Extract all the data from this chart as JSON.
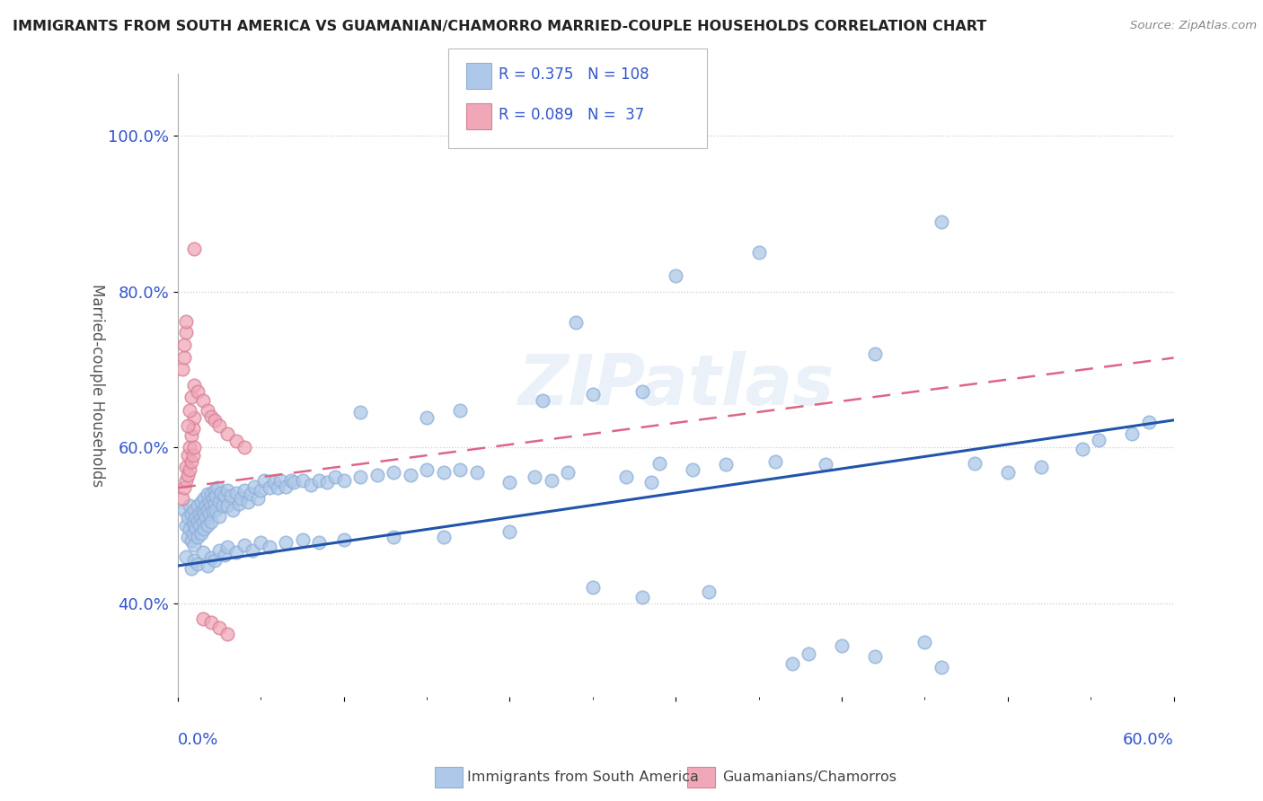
{
  "title": "IMMIGRANTS FROM SOUTH AMERICA VS GUAMANIAN/CHAMORRO MARRIED-COUPLE HOUSEHOLDS CORRELATION CHART",
  "source": "Source: ZipAtlas.com",
  "ylabel": "Married-couple Households",
  "ytick_labels": [
    "40.0%",
    "60.0%",
    "80.0%",
    "100.0%"
  ],
  "ytick_values": [
    0.4,
    0.6,
    0.8,
    1.0
  ],
  "xlim": [
    0.0,
    0.6
  ],
  "ylim": [
    0.28,
    1.08
  ],
  "blue_color": "#adc8e8",
  "blue_edge_color": "#90b0d8",
  "pink_color": "#f0a8b8",
  "pink_edge_color": "#d88098",
  "blue_line_color": "#2255aa",
  "pink_line_color": "#dd6688",
  "legend_text_color": "#3355cc",
  "watermark": "ZIPatlas",
  "blue_trend_x": [
    0.0,
    0.6
  ],
  "blue_trend_y": [
    0.448,
    0.635
  ],
  "pink_trend_x": [
    0.0,
    0.6
  ],
  "pink_trend_y": [
    0.548,
    0.715
  ],
  "background_color": "#ffffff",
  "grid_color": "#cccccc",
  "blue_scatter": [
    [
      0.004,
      0.52
    ],
    [
      0.005,
      0.5
    ],
    [
      0.006,
      0.485
    ],
    [
      0.006,
      0.51
    ],
    [
      0.007,
      0.525
    ],
    [
      0.007,
      0.495
    ],
    [
      0.008,
      0.515
    ],
    [
      0.008,
      0.48
    ],
    [
      0.009,
      0.505
    ],
    [
      0.009,
      0.49
    ],
    [
      0.01,
      0.52
    ],
    [
      0.01,
      0.5
    ],
    [
      0.01,
      0.475
    ],
    [
      0.011,
      0.51
    ],
    [
      0.011,
      0.495
    ],
    [
      0.012,
      0.525
    ],
    [
      0.012,
      0.505
    ],
    [
      0.012,
      0.485
    ],
    [
      0.013,
      0.515
    ],
    [
      0.013,
      0.5
    ],
    [
      0.014,
      0.53
    ],
    [
      0.014,
      0.51
    ],
    [
      0.014,
      0.49
    ],
    [
      0.015,
      0.52
    ],
    [
      0.015,
      0.505
    ],
    [
      0.016,
      0.535
    ],
    [
      0.016,
      0.515
    ],
    [
      0.016,
      0.495
    ],
    [
      0.017,
      0.525
    ],
    [
      0.017,
      0.51
    ],
    [
      0.018,
      0.54
    ],
    [
      0.018,
      0.52
    ],
    [
      0.018,
      0.5
    ],
    [
      0.019,
      0.53
    ],
    [
      0.019,
      0.515
    ],
    [
      0.02,
      0.54
    ],
    [
      0.02,
      0.525
    ],
    [
      0.02,
      0.505
    ],
    [
      0.021,
      0.535
    ],
    [
      0.021,
      0.518
    ],
    [
      0.022,
      0.545
    ],
    [
      0.022,
      0.528
    ],
    [
      0.023,
      0.538
    ],
    [
      0.023,
      0.52
    ],
    [
      0.024,
      0.548
    ],
    [
      0.025,
      0.53
    ],
    [
      0.025,
      0.512
    ],
    [
      0.026,
      0.542
    ],
    [
      0.027,
      0.525
    ],
    [
      0.028,
      0.538
    ],
    [
      0.03,
      0.545
    ],
    [
      0.03,
      0.525
    ],
    [
      0.032,
      0.538
    ],
    [
      0.033,
      0.52
    ],
    [
      0.035,
      0.542
    ],
    [
      0.037,
      0.528
    ],
    [
      0.038,
      0.535
    ],
    [
      0.04,
      0.545
    ],
    [
      0.042,
      0.53
    ],
    [
      0.044,
      0.54
    ],
    [
      0.046,
      0.55
    ],
    [
      0.048,
      0.535
    ],
    [
      0.05,
      0.545
    ],
    [
      0.052,
      0.558
    ],
    [
      0.055,
      0.548
    ],
    [
      0.058,
      0.555
    ],
    [
      0.06,
      0.548
    ],
    [
      0.062,
      0.558
    ],
    [
      0.065,
      0.55
    ],
    [
      0.068,
      0.558
    ],
    [
      0.07,
      0.555
    ],
    [
      0.075,
      0.558
    ],
    [
      0.08,
      0.552
    ],
    [
      0.085,
      0.558
    ],
    [
      0.09,
      0.555
    ],
    [
      0.095,
      0.562
    ],
    [
      0.1,
      0.558
    ],
    [
      0.11,
      0.562
    ],
    [
      0.12,
      0.565
    ],
    [
      0.13,
      0.568
    ],
    [
      0.14,
      0.565
    ],
    [
      0.15,
      0.572
    ],
    [
      0.16,
      0.568
    ],
    [
      0.17,
      0.572
    ],
    [
      0.18,
      0.568
    ],
    [
      0.005,
      0.46
    ],
    [
      0.008,
      0.445
    ],
    [
      0.01,
      0.455
    ],
    [
      0.012,
      0.45
    ],
    [
      0.015,
      0.465
    ],
    [
      0.018,
      0.448
    ],
    [
      0.02,
      0.458
    ],
    [
      0.022,
      0.455
    ],
    [
      0.025,
      0.468
    ],
    [
      0.028,
      0.462
    ],
    [
      0.03,
      0.472
    ],
    [
      0.035,
      0.465
    ],
    [
      0.04,
      0.475
    ],
    [
      0.045,
      0.468
    ],
    [
      0.05,
      0.478
    ],
    [
      0.055,
      0.472
    ],
    [
      0.065,
      0.478
    ],
    [
      0.075,
      0.482
    ],
    [
      0.085,
      0.478
    ],
    [
      0.1,
      0.482
    ],
    [
      0.13,
      0.485
    ],
    [
      0.16,
      0.485
    ],
    [
      0.2,
      0.492
    ],
    [
      0.25,
      0.42
    ],
    [
      0.28,
      0.408
    ],
    [
      0.32,
      0.415
    ],
    [
      0.37,
      0.322
    ],
    [
      0.38,
      0.335
    ],
    [
      0.4,
      0.345
    ],
    [
      0.42,
      0.332
    ],
    [
      0.45,
      0.35
    ],
    [
      0.46,
      0.318
    ],
    [
      0.24,
      0.76
    ],
    [
      0.3,
      0.82
    ],
    [
      0.35,
      0.85
    ],
    [
      0.42,
      0.72
    ],
    [
      0.46,
      0.89
    ],
    [
      0.48,
      0.58
    ],
    [
      0.5,
      0.568
    ],
    [
      0.52,
      0.575
    ],
    [
      0.545,
      0.598
    ],
    [
      0.555,
      0.61
    ],
    [
      0.575,
      0.618
    ],
    [
      0.585,
      0.632
    ],
    [
      0.29,
      0.58
    ],
    [
      0.31,
      0.572
    ],
    [
      0.33,
      0.578
    ],
    [
      0.36,
      0.582
    ],
    [
      0.39,
      0.578
    ],
    [
      0.27,
      0.562
    ],
    [
      0.285,
      0.555
    ],
    [
      0.2,
      0.555
    ],
    [
      0.215,
      0.562
    ],
    [
      0.225,
      0.558
    ],
    [
      0.235,
      0.568
    ],
    [
      0.11,
      0.645
    ],
    [
      0.15,
      0.638
    ],
    [
      0.17,
      0.648
    ],
    [
      0.22,
      0.66
    ],
    [
      0.25,
      0.668
    ],
    [
      0.28,
      0.672
    ]
  ],
  "pink_scatter": [
    [
      0.003,
      0.535
    ],
    [
      0.004,
      0.548
    ],
    [
      0.005,
      0.558
    ],
    [
      0.005,
      0.575
    ],
    [
      0.006,
      0.565
    ],
    [
      0.006,
      0.59
    ],
    [
      0.007,
      0.572
    ],
    [
      0.007,
      0.6
    ],
    [
      0.008,
      0.582
    ],
    [
      0.008,
      0.615
    ],
    [
      0.009,
      0.59
    ],
    [
      0.009,
      0.625
    ],
    [
      0.01,
      0.6
    ],
    [
      0.01,
      0.638
    ],
    [
      0.003,
      0.7
    ],
    [
      0.004,
      0.715
    ],
    [
      0.004,
      0.732
    ],
    [
      0.005,
      0.748
    ],
    [
      0.005,
      0.762
    ],
    [
      0.006,
      0.628
    ],
    [
      0.007,
      0.648
    ],
    [
      0.008,
      0.665
    ],
    [
      0.01,
      0.68
    ],
    [
      0.012,
      0.672
    ],
    [
      0.015,
      0.66
    ],
    [
      0.018,
      0.648
    ],
    [
      0.02,
      0.64
    ],
    [
      0.022,
      0.635
    ],
    [
      0.025,
      0.628
    ],
    [
      0.03,
      0.618
    ],
    [
      0.035,
      0.608
    ],
    [
      0.04,
      0.6
    ],
    [
      0.01,
      0.855
    ],
    [
      0.015,
      0.38
    ],
    [
      0.02,
      0.375
    ],
    [
      0.025,
      0.368
    ],
    [
      0.03,
      0.36
    ]
  ]
}
